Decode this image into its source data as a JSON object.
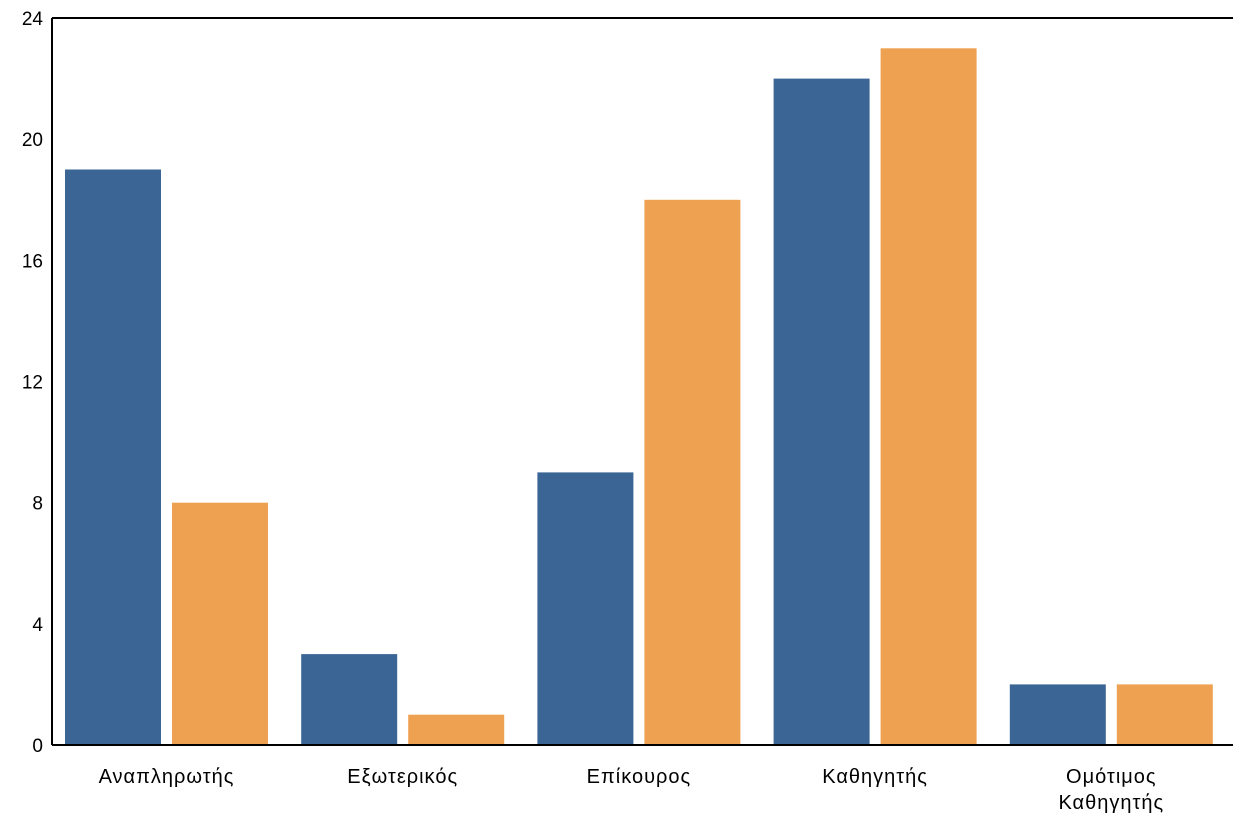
{
  "chart_data": {
    "type": "bar",
    "categories": [
      [
        "Αναπληρωτής"
      ],
      [
        "Εξωτερικός"
      ],
      [
        "Επίκουρος"
      ],
      [
        "Καθηγητής"
      ],
      [
        "Ομότιμος",
        "Καθηγητής"
      ]
    ],
    "series": [
      {
        "color": "#3b6595",
        "values": [
          19,
          3,
          9,
          22,
          2
        ]
      },
      {
        "color": "#eea251",
        "values": [
          8,
          1,
          18,
          23,
          2
        ]
      }
    ],
    "yticks": [
      "0",
      "4",
      "8",
      "12",
      "16",
      "20",
      "24"
    ],
    "ylim": [
      0,
      24
    ],
    "grid": false,
    "legend": "none"
  }
}
